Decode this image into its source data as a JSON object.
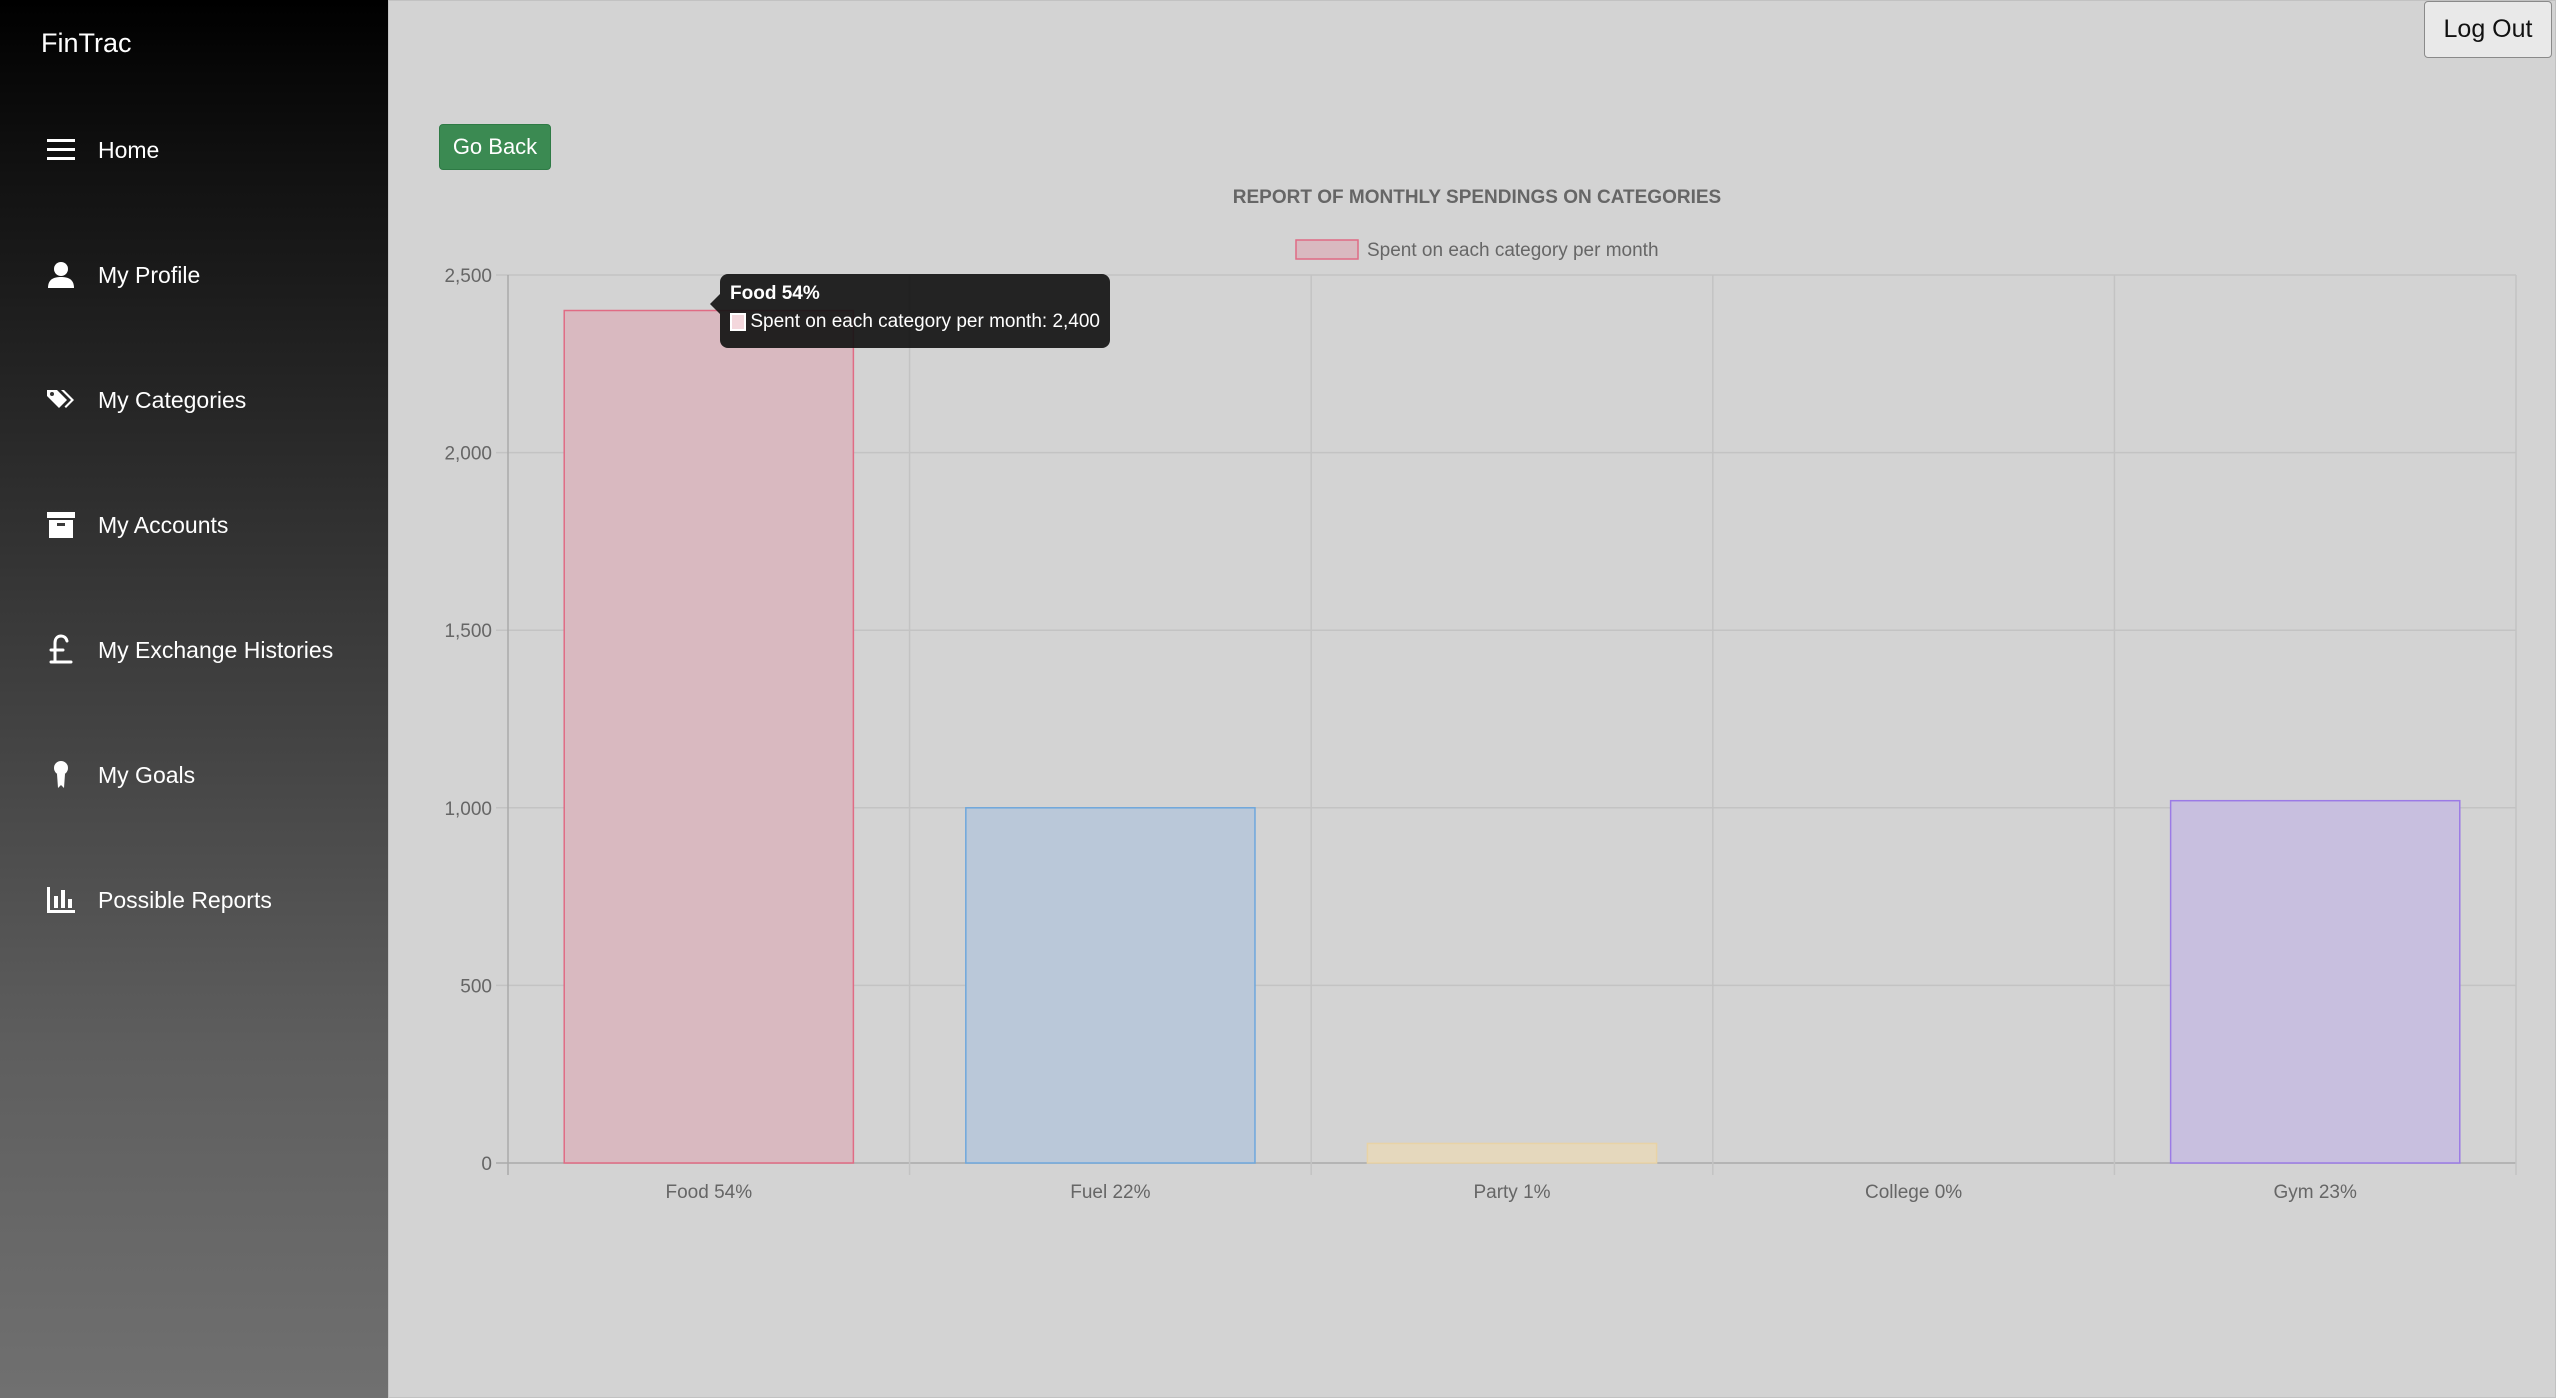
{
  "app": {
    "brand": "FinTrac"
  },
  "sidebar": {
    "items": [
      {
        "label": "Home",
        "icon": "menu-icon"
      },
      {
        "label": "My Profile",
        "icon": "user-icon"
      },
      {
        "label": "My Categories",
        "icon": "tags-icon"
      },
      {
        "label": "My Accounts",
        "icon": "archive-icon"
      },
      {
        "label": "My Exchange Histories",
        "icon": "pound-icon"
      },
      {
        "label": "My Goals",
        "icon": "award-icon"
      },
      {
        "label": "Possible Reports",
        "icon": "bar-chart-icon"
      }
    ]
  },
  "header": {
    "logout_label": "Log Out"
  },
  "main": {
    "go_back_label": "Go Back"
  },
  "tooltip": {
    "title": "Food 54%",
    "line": "Spent on each category per month: 2,400"
  },
  "colors": {
    "button_green": "#3b8a52",
    "background": "#d3d3d3"
  },
  "chart_data": {
    "type": "bar",
    "title": "REPORT OF MONTHLY SPENDINGS ON CATEGORIES",
    "legend_position": "top",
    "categories": [
      "Food 54%",
      "Fuel 22%",
      "Party 1%",
      "College 0%",
      "Gym 23%"
    ],
    "series": [
      {
        "name": "Spent on each category per month",
        "values": [
          2400,
          1000,
          55,
          0,
          1020
        ]
      }
    ],
    "bar_colors": [
      {
        "fill": "#d9b9c0",
        "stroke": "#e06b84"
      },
      {
        "fill": "#bac8d9",
        "stroke": "#6ea7dc"
      },
      {
        "fill": "#e5d8bd",
        "stroke": "#e8d3a6"
      },
      {
        "fill": "#c9d9d8",
        "stroke": "#6cc0bc"
      },
      {
        "fill": "#c8bfdf",
        "stroke": "#9b7ae6"
      }
    ],
    "ylim": [
      0,
      2500
    ],
    "yticks": [
      0,
      500,
      1000,
      1500,
      2000,
      2500
    ],
    "ytick_labels": [
      "0",
      "500",
      "1,000",
      "1,500",
      "2,000",
      "2,500"
    ],
    "grid": true
  }
}
